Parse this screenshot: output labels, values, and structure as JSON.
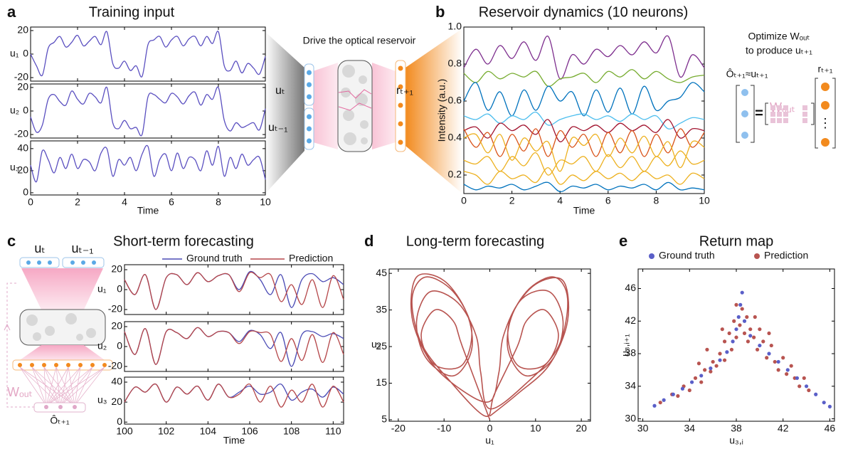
{
  "chart_data": [
    {
      "type": "line",
      "panel_label": "a",
      "title": "Training input",
      "xlabel": "Time",
      "x": [
        0,
        0.25,
        0.5,
        0.75,
        1,
        1.25,
        1.5,
        1.75,
        2,
        2.25,
        2.5,
        2.75,
        3,
        3.25,
        3.5,
        3.75,
        4,
        4.25,
        4.5,
        4.75,
        5,
        5.25,
        5.5,
        5.75,
        6,
        6.25,
        6.5,
        6.75,
        7,
        7.25,
        7.5,
        7.75,
        8,
        8.25,
        8.5,
        8.75,
        9,
        9.25,
        9.5,
        9.75,
        10
      ],
      "xlim": [
        0,
        10
      ],
      "xticks": [
        0,
        2,
        4,
        6,
        8,
        10
      ],
      "subplots": [
        {
          "ylabel": "u₁",
          "ylim": [
            -23,
            23
          ],
          "yticks": [
            -20,
            0,
            20
          ],
          "series": [
            {
              "color": "#5a4fc0",
              "values": [
                0,
                -10,
                -18,
                5,
                10,
                15,
                6,
                10,
                16,
                7,
                11,
                15,
                8,
                19,
                -8,
                -12,
                -6,
                -14,
                -10,
                -19,
                8,
                12,
                15,
                6,
                12,
                15,
                7,
                13,
                15,
                7,
                15,
                9,
                19,
                -10,
                -14,
                -6,
                -16,
                -8,
                -12,
                -17,
                -2
              ]
            }
          ]
        },
        {
          "ylabel": "u₂",
          "ylim": [
            -23,
            23
          ],
          "yticks": [
            -20,
            0,
            20
          ],
          "series": [
            {
              "color": "#5a4fc0",
              "values": [
                -5,
                -18,
                -12,
                10,
                14,
                8,
                5,
                17,
                10,
                6,
                15,
                12,
                7,
                20,
                -10,
                -15,
                -8,
                -15,
                -14,
                -20,
                12,
                14,
                10,
                7,
                15,
                12,
                6,
                13,
                16,
                5,
                14,
                10,
                20,
                -8,
                -17,
                -10,
                -14,
                -12,
                -10,
                -16,
                2
              ]
            }
          ]
        },
        {
          "ylabel": "u₃",
          "ylim": [
            -2,
            47
          ],
          "yticks": [
            0,
            20,
            40
          ],
          "series": [
            {
              "color": "#5a4fc0",
              "values": [
                25,
                10,
                38,
                30,
                18,
                32,
                22,
                35,
                22,
                30,
                28,
                20,
                36,
                40,
                15,
                30,
                25,
                32,
                20,
                35,
                42,
                15,
                30,
                35,
                20,
                36,
                22,
                32,
                30,
                20,
                38,
                25,
                42,
                15,
                32,
                22,
                35,
                25,
                30,
                32,
                12
              ]
            }
          ]
        }
      ]
    },
    {
      "type": "line",
      "panel_label": "b",
      "title": "Reservoir dynamics (10 neurons)",
      "xlabel": "Time",
      "ylabel": "Intensity (a.u.)",
      "x": [
        0,
        0.5,
        1,
        1.5,
        2,
        2.5,
        3,
        3.5,
        4,
        4.5,
        5,
        5.5,
        6,
        6.5,
        7,
        7.5,
        8,
        8.5,
        9,
        9.5,
        10
      ],
      "xlim": [
        0,
        10
      ],
      "xticks": [
        0,
        2,
        4,
        6,
        8,
        10
      ],
      "ylim": [
        0.1,
        1.0
      ],
      "yticks": [
        0.2,
        0.4,
        0.6,
        0.8,
        {
          "value": 1,
          "label": "1.0"
        }
      ],
      "series": [
        {
          "color": "#7e2f8e",
          "values": [
            0.78,
            0.88,
            0.8,
            0.9,
            0.83,
            0.92,
            0.82,
            0.95,
            0.72,
            0.85,
            0.8,
            0.88,
            0.84,
            0.9,
            0.85,
            0.92,
            0.86,
            0.95,
            0.73,
            0.85,
            0.78
          ]
        },
        {
          "color": "#77ac30",
          "values": [
            0.75,
            0.7,
            0.76,
            0.72,
            0.75,
            0.73,
            0.76,
            0.68,
            0.72,
            0.73,
            0.75,
            0.7,
            0.76,
            0.73,
            0.77,
            0.72,
            0.76,
            0.72,
            0.7,
            0.73,
            0.74
          ]
        },
        {
          "color": "#0072bd",
          "values": [
            0.6,
            0.7,
            0.55,
            0.65,
            0.52,
            0.66,
            0.55,
            0.68,
            0.6,
            0.65,
            0.52,
            0.66,
            0.54,
            0.67,
            0.53,
            0.68,
            0.55,
            0.6,
            0.62,
            0.7,
            0.65
          ]
        },
        {
          "color": "#4dbeee",
          "values": [
            0.52,
            0.5,
            0.53,
            0.48,
            0.52,
            0.5,
            0.54,
            0.47,
            0.5,
            0.52,
            0.53,
            0.5,
            0.52,
            0.49,
            0.53,
            0.5,
            0.52,
            0.45,
            0.48,
            0.51,
            0.5
          ]
        },
        {
          "color": "#a2142f",
          "values": [
            0.44,
            0.46,
            0.4,
            0.48,
            0.44,
            0.47,
            0.42,
            0.5,
            0.38,
            0.46,
            0.44,
            0.47,
            0.43,
            0.48,
            0.44,
            0.47,
            0.43,
            0.5,
            0.4,
            0.45,
            0.44
          ]
        },
        {
          "color": "#d95319",
          "values": [
            0.45,
            0.35,
            0.43,
            0.3,
            0.42,
            0.33,
            0.45,
            0.3,
            0.44,
            0.35,
            0.42,
            0.3,
            0.43,
            0.32,
            0.44,
            0.3,
            0.42,
            0.32,
            0.45,
            0.35,
            0.43
          ]
        },
        {
          "color": "#edb120",
          "values": [
            0.4,
            0.42,
            0.32,
            0.42,
            0.28,
            0.4,
            0.33,
            0.38,
            0.22,
            0.4,
            0.36,
            0.42,
            0.3,
            0.4,
            0.32,
            0.41,
            0.3,
            0.38,
            0.24,
            0.38,
            0.35
          ]
        },
        {
          "color": "#edb120",
          "values": [
            0.28,
            0.26,
            0.3,
            0.22,
            0.3,
            0.25,
            0.32,
            0.2,
            0.28,
            0.26,
            0.3,
            0.22,
            0.31,
            0.24,
            0.3,
            0.22,
            0.3,
            0.25,
            0.33,
            0.26,
            0.28
          ]
        },
        {
          "color": "#edb120",
          "values": [
            0.22,
            0.2,
            0.15,
            0.22,
            0.18,
            0.2,
            0.16,
            0.24,
            0.15,
            0.2,
            0.17,
            0.22,
            0.18,
            0.21,
            0.17,
            0.22,
            0.18,
            0.2,
            0.15,
            0.21,
            0.18
          ]
        },
        {
          "color": "#0072bd",
          "values": [
            0.15,
            0.12,
            0.14,
            0.13,
            0.15,
            0.12,
            0.14,
            0.16,
            0.11,
            0.14,
            0.13,
            0.15,
            0.12,
            0.14,
            0.13,
            0.15,
            0.12,
            0.16,
            0.12,
            0.13,
            0.12
          ]
        }
      ]
    },
    {
      "type": "line",
      "panel_label": "c",
      "title": "Short-term forecasting",
      "xlabel": "Time",
      "legend": [
        {
          "name": "Ground truth",
          "color": "#4b4bb5"
        },
        {
          "name": "Prediction",
          "color": "#b5474a"
        }
      ],
      "x": [
        100,
        100.5,
        101,
        101.5,
        102,
        102.5,
        103,
        103.5,
        104,
        104.5,
        105,
        105.5,
        106,
        106.5,
        107,
        107.5,
        108,
        108.5,
        109,
        109.5,
        110,
        110.5
      ],
      "xlim": [
        100,
        110.5
      ],
      "xticks": [
        100,
        102,
        104,
        106,
        108,
        110
      ],
      "subplots": [
        {
          "ylabel": "u₁",
          "ylim": [
            -25,
            25
          ],
          "yticks": [
            -20,
            0,
            20
          ],
          "series": [
            {
              "values": [
                10,
                -5,
                15,
                -20,
                12,
                15,
                5,
                17,
                8,
                14,
                15,
                0,
                18,
                10,
                -5,
                15,
                -18,
                10,
                16,
                8,
                12,
                5
              ]
            },
            {
              "values": [
                10,
                -5,
                15,
                -20,
                12,
                15,
                5,
                17,
                8,
                14,
                15,
                -2,
                17,
                12,
                15,
                -12,
                5,
                -15,
                10,
                -18,
                14,
                -10
              ]
            }
          ]
        },
        {
          "ylabel": "u₂",
          "ylim": [
            -25,
            25
          ],
          "yticks": [
            -20,
            0,
            20
          ],
          "series": [
            {
              "values": [
                15,
                -8,
                18,
                -18,
                15,
                14,
                8,
                19,
                10,
                15,
                14,
                5,
                16,
                12,
                -2,
                14,
                -20,
                12,
                15,
                10,
                13,
                8
              ]
            },
            {
              "values": [
                15,
                -8,
                18,
                -18,
                15,
                14,
                8,
                19,
                10,
                15,
                14,
                3,
                15,
                14,
                12,
                -15,
                8,
                -14,
                12,
                -16,
                14,
                -8
              ]
            }
          ]
        },
        {
          "ylabel": "u₃",
          "ylim": [
            -2,
            45
          ],
          "yticks": [
            0,
            20,
            40
          ],
          "series": [
            {
              "values": [
                20,
                35,
                30,
                38,
                20,
                35,
                28,
                36,
                22,
                38,
                25,
                30,
                36,
                28,
                30,
                38,
                22,
                30,
                33,
                25,
                35,
                28
              ]
            },
            {
              "values": [
                20,
                35,
                30,
                38,
                20,
                35,
                28,
                36,
                22,
                38,
                25,
                28,
                38,
                20,
                36,
                15,
                32,
                20,
                38,
                15,
                36,
                20
              ]
            }
          ]
        }
      ]
    },
    {
      "type": "line",
      "panel_label": "d",
      "title": "Long-term forecasting",
      "xlabel": "u₁",
      "ylabel": "u₃",
      "color": "#b85450",
      "x": [
        0,
        6,
        13,
        17,
        16,
        10,
        5,
        4,
        8,
        14,
        16,
        13,
        7,
        3,
        2,
        0,
        -6,
        -13,
        -17,
        -16,
        -10,
        -5,
        -4,
        -8,
        -14,
        -16,
        -13,
        -7,
        -3,
        -2,
        0,
        8,
        15,
        17,
        14,
        8,
        4,
        6,
        12,
        15,
        12,
        8,
        6,
        1,
        -1,
        -9,
        -15,
        -17,
        -14,
        -8,
        -4,
        -6,
        -12,
        -15,
        -12,
        -8,
        -6,
        0
      ],
      "y": [
        6,
        12,
        20,
        32,
        43,
        42,
        34,
        24,
        17,
        22,
        32,
        40,
        38,
        28,
        18,
        10,
        13,
        21,
        33,
        44,
        43,
        34,
        24,
        17,
        22,
        32,
        40,
        37,
        28,
        18,
        8,
        15,
        25,
        38,
        44,
        40,
        30,
        20,
        20,
        28,
        35,
        32,
        25,
        12,
        6,
        16,
        26,
        38,
        44,
        40,
        30,
        20,
        20,
        28,
        35,
        32,
        25,
        5
      ],
      "xlim": [
        -22,
        22
      ],
      "xticks": [
        -20,
        -10,
        0,
        10,
        20
      ],
      "ylim": [
        4.6,
        46.2
      ],
      "yticks": [
        5,
        15,
        25,
        35,
        45
      ]
    },
    {
      "type": "scatter",
      "panel_label": "e",
      "title": "Return map",
      "xlabel": "u₃,ᵢ",
      "ylabel": "u₃,ᵢ₊₁",
      "xlim": [
        29.6,
        46.4
      ],
      "xticks": [
        30,
        34,
        38,
        42,
        46
      ],
      "ylim": [
        29.7,
        48.4
      ],
      "yticks": [
        30,
        34,
        38,
        42,
        46
      ],
      "series": [
        {
          "name": "Ground truth",
          "color": "#5a5fc8",
          "x": [
            31,
            31.8,
            32.6,
            33.4,
            34.2,
            35,
            35.8,
            36.6,
            37.2,
            37.7,
            38,
            38.2,
            38.35,
            38.5,
            38.7,
            39.2,
            40,
            40.8,
            41.6,
            42.4,
            43.2,
            44,
            44.8,
            45.5,
            46
          ],
          "values": [
            31.6,
            32.3,
            33,
            33.7,
            34.5,
            35.3,
            36.2,
            37.2,
            38.2,
            39.5,
            41,
            42.5,
            44,
            45.5,
            42,
            40.2,
            39,
            38,
            37,
            36,
            35,
            34,
            33,
            32,
            31.5
          ]
        },
        {
          "name": "Prediction",
          "color": "#b85450",
          "x": [
            31.5,
            32.5,
            33,
            33.5,
            34,
            34.5,
            35,
            35.3,
            35.8,
            36,
            36.3,
            36.6,
            37,
            37,
            37.4,
            37.6,
            37.8,
            38,
            38,
            38.3,
            38.5,
            38.7,
            38.9,
            39,
            39.2,
            39.5,
            39.8,
            40,
            40.3,
            40.6,
            41,
            41.3,
            41.6,
            42,
            42.3,
            42.7,
            43,
            43.4,
            43.8,
            44.2,
            36.8,
            39.6,
            35.5,
            40.8,
            34.8
          ],
          "values": [
            32,
            33,
            32.8,
            34,
            33.5,
            35,
            34.5,
            36,
            35.8,
            37,
            36.5,
            38,
            37.2,
            39.5,
            40.5,
            38.5,
            42,
            40,
            44,
            41.5,
            43.5,
            40.5,
            42.5,
            39.5,
            41,
            40,
            38.5,
            41,
            39.5,
            37.5,
            39,
            37,
            36,
            37.5,
            35.5,
            36.5,
            35,
            34,
            35,
            33.5,
            41,
            42.5,
            38.5,
            40.5,
            36.8
          ]
        }
      ]
    }
  ],
  "schematic": {
    "drive": "Drive the optical reservoir",
    "u_t": "uₜ",
    "u_t1": "uₜ₋₁",
    "r": "rₜ₊₁",
    "optimize": "Optimize Wₒᵤₜ",
    "produce": "to produce uₜ₊₁",
    "approx": "Ôₜ₊₁≈uₜ₊₁",
    "w_out": "Wₒᵤₜ",
    "r2": "rₜ₊₁",
    "equals": "=",
    "dots": "⋮"
  },
  "schematic_c": {
    "u_t": "uₜ",
    "u_t1": "uₜ₋₁",
    "w_out": "Wₒᵤₜ",
    "o": "Ôₜ₊₁"
  }
}
